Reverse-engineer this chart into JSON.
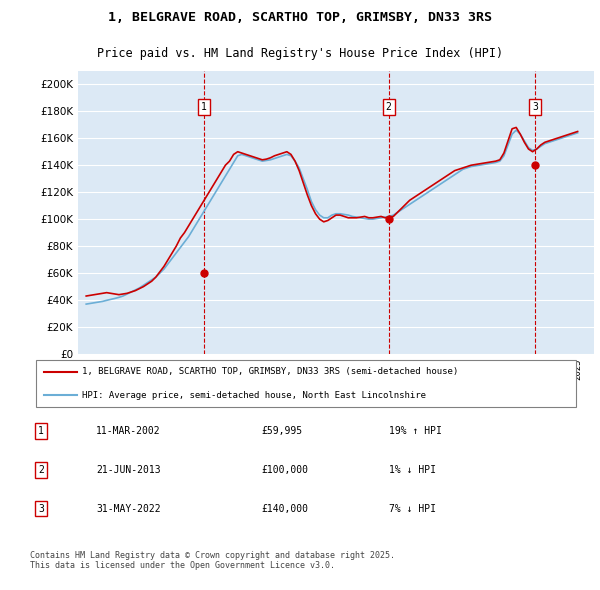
{
  "title": "1, BELGRAVE ROAD, SCARTHO TOP, GRIMSBY, DN33 3RS",
  "subtitle": "Price paid vs. HM Land Registry's House Price Index (HPI)",
  "bg_color": "#dce9f5",
  "plot_bg_color": "#dce9f5",
  "legend_line1": "1, BELGRAVE ROAD, SCARTHO TOP, GRIMSBY, DN33 3RS (semi-detached house)",
  "legend_line2": "HPI: Average price, semi-detached house, North East Lincolnshire",
  "sale_color": "#cc0000",
  "hpi_color": "#6baed6",
  "transactions": [
    {
      "num": 1,
      "date": "11-MAR-2002",
      "price": 59995,
      "pct": "19%",
      "dir": "↑",
      "label": "HPI"
    },
    {
      "num": 2,
      "date": "21-JUN-2013",
      "price": 100000,
      "pct": "1%",
      "dir": "↓",
      "label": "HPI"
    },
    {
      "num": 3,
      "date": "31-MAY-2022",
      "price": 140000,
      "pct": "7%",
      "dir": "↓",
      "label": "HPI"
    }
  ],
  "vline_dates": [
    2002.19,
    2013.47,
    2022.41
  ],
  "vline_color": "#cc0000",
  "footer": "Contains HM Land Registry data © Crown copyright and database right 2025.\nThis data is licensed under the Open Government Licence v3.0.",
  "ylim": [
    0,
    210000
  ],
  "yticks": [
    0,
    20000,
    40000,
    60000,
    80000,
    100000,
    120000,
    140000,
    160000,
    180000,
    200000
  ],
  "ylabel_format": "£{0}K",
  "xmin": 1994.5,
  "xmax": 2026.0,
  "hpi_x": [
    1995.0,
    1995.25,
    1995.5,
    1995.75,
    1996.0,
    1996.25,
    1996.5,
    1996.75,
    1997.0,
    1997.25,
    1997.5,
    1997.75,
    1998.0,
    1998.25,
    1998.5,
    1998.75,
    1999.0,
    1999.25,
    1999.5,
    1999.75,
    2000.0,
    2000.25,
    2000.5,
    2000.75,
    2001.0,
    2001.25,
    2001.5,
    2001.75,
    2002.0,
    2002.25,
    2002.5,
    2002.75,
    2003.0,
    2003.25,
    2003.5,
    2003.75,
    2004.0,
    2004.25,
    2004.5,
    2004.75,
    2005.0,
    2005.25,
    2005.5,
    2005.75,
    2006.0,
    2006.25,
    2006.5,
    2006.75,
    2007.0,
    2007.25,
    2007.5,
    2007.75,
    2008.0,
    2008.25,
    2008.5,
    2008.75,
    2009.0,
    2009.25,
    2009.5,
    2009.75,
    2010.0,
    2010.25,
    2010.5,
    2010.75,
    2011.0,
    2011.25,
    2011.5,
    2011.75,
    2012.0,
    2012.25,
    2012.5,
    2012.75,
    2013.0,
    2013.25,
    2013.5,
    2013.75,
    2014.0,
    2014.25,
    2014.5,
    2014.75,
    2015.0,
    2015.25,
    2015.5,
    2015.75,
    2016.0,
    2016.25,
    2016.5,
    2016.75,
    2017.0,
    2017.25,
    2017.5,
    2017.75,
    2018.0,
    2018.25,
    2018.5,
    2018.75,
    2019.0,
    2019.25,
    2019.5,
    2019.75,
    2020.0,
    2020.25,
    2020.5,
    2020.75,
    2021.0,
    2021.25,
    2021.5,
    2021.75,
    2022.0,
    2022.25,
    2022.5,
    2022.75,
    2023.0,
    2023.25,
    2023.5,
    2023.75,
    2024.0,
    2024.25,
    2024.5,
    2024.75,
    2025.0
  ],
  "hpi_y": [
    37000,
    37500,
    38000,
    38500,
    39000,
    39800,
    40500,
    41200,
    42000,
    43000,
    44500,
    46000,
    47500,
    49000,
    51000,
    53000,
    55000,
    57000,
    60000,
    63000,
    67000,
    71000,
    75000,
    79000,
    83000,
    87000,
    92000,
    97000,
    102000,
    107000,
    112000,
    117000,
    122000,
    127000,
    132000,
    137000,
    142000,
    147000,
    148000,
    147000,
    146000,
    145000,
    144000,
    143000,
    143500,
    144000,
    145000,
    146000,
    147000,
    148000,
    147000,
    143000,
    138000,
    130000,
    122000,
    113000,
    107000,
    103000,
    101000,
    101000,
    103000,
    104000,
    104000,
    103500,
    103000,
    102000,
    101500,
    101000,
    100500,
    100000,
    100000,
    100500,
    101000,
    101500,
    102000,
    103000,
    105000,
    107000,
    109000,
    111000,
    113000,
    115000,
    117000,
    119000,
    121000,
    123000,
    125000,
    127000,
    129000,
    131000,
    133000,
    135000,
    137000,
    138000,
    139000,
    139500,
    140000,
    140500,
    141000,
    141500,
    142000,
    143000,
    147000,
    155000,
    163000,
    166000,
    163000,
    158000,
    153000,
    151000,
    152000,
    154000,
    156000,
    157000,
    158000,
    159000,
    160000,
    161000,
    162000,
    163000,
    164000
  ],
  "price_x": [
    1995.0,
    1995.25,
    1995.5,
    1995.75,
    1996.0,
    1996.25,
    1996.5,
    1996.75,
    1997.0,
    1997.25,
    1997.5,
    1997.75,
    1998.0,
    1998.25,
    1998.5,
    1998.75,
    1999.0,
    1999.25,
    1999.5,
    1999.75,
    2000.0,
    2000.25,
    2000.5,
    2000.75,
    2001.0,
    2001.25,
    2001.5,
    2001.75,
    2002.0,
    2002.25,
    2002.5,
    2002.75,
    2003.0,
    2003.25,
    2003.5,
    2003.75,
    2004.0,
    2004.25,
    2004.5,
    2004.75,
    2005.0,
    2005.25,
    2005.5,
    2005.75,
    2006.0,
    2006.25,
    2006.5,
    2006.75,
    2007.0,
    2007.25,
    2007.5,
    2007.75,
    2008.0,
    2008.25,
    2008.5,
    2008.75,
    2009.0,
    2009.25,
    2009.5,
    2009.75,
    2010.0,
    2010.25,
    2010.5,
    2010.75,
    2011.0,
    2011.25,
    2011.5,
    2011.75,
    2012.0,
    2012.25,
    2012.5,
    2012.75,
    2013.0,
    2013.25,
    2013.5,
    2013.75,
    2014.0,
    2014.25,
    2014.5,
    2014.75,
    2015.0,
    2015.25,
    2015.5,
    2015.75,
    2016.0,
    2016.25,
    2016.5,
    2016.75,
    2017.0,
    2017.25,
    2017.5,
    2017.75,
    2018.0,
    2018.25,
    2018.5,
    2018.75,
    2019.0,
    2019.25,
    2019.5,
    2019.75,
    2020.0,
    2020.25,
    2020.5,
    2020.75,
    2021.0,
    2021.25,
    2021.5,
    2021.75,
    2022.0,
    2022.25,
    2022.5,
    2022.75,
    2023.0,
    2023.25,
    2023.5,
    2023.75,
    2024.0,
    2024.25,
    2024.5,
    2024.75,
    2025.0
  ],
  "price_y": [
    43000,
    43500,
    44000,
    44500,
    45000,
    45500,
    45000,
    44500,
    44000,
    44500,
    45000,
    46000,
    47000,
    48500,
    50000,
    52000,
    54000,
    57000,
    61000,
    65000,
    70000,
    75000,
    80000,
    86000,
    90000,
    95000,
    100000,
    105000,
    110000,
    115000,
    120000,
    125000,
    130000,
    135000,
    140000,
    143000,
    148000,
    150000,
    149000,
    148000,
    147000,
    146000,
    145000,
    144000,
    144500,
    145500,
    147000,
    148000,
    149000,
    150000,
    148000,
    143000,
    136000,
    127000,
    118000,
    110000,
    104000,
    100000,
    98000,
    99000,
    101000,
    103000,
    103000,
    102000,
    101000,
    101000,
    101000,
    101500,
    102000,
    101000,
    101000,
    101500,
    102000,
    101000,
    101500,
    102000,
    105000,
    108000,
    111000,
    114000,
    116000,
    118000,
    120000,
    122000,
    124000,
    126000,
    128000,
    130000,
    132000,
    134000,
    136000,
    137000,
    138000,
    139000,
    140000,
    140500,
    141000,
    141500,
    142000,
    142500,
    143000,
    144000,
    149000,
    158000,
    167000,
    168000,
    163000,
    157000,
    152000,
    150000,
    152000,
    155000,
    157000,
    158000,
    159000,
    160000,
    161000,
    162000,
    163000,
    164000,
    165000
  ]
}
